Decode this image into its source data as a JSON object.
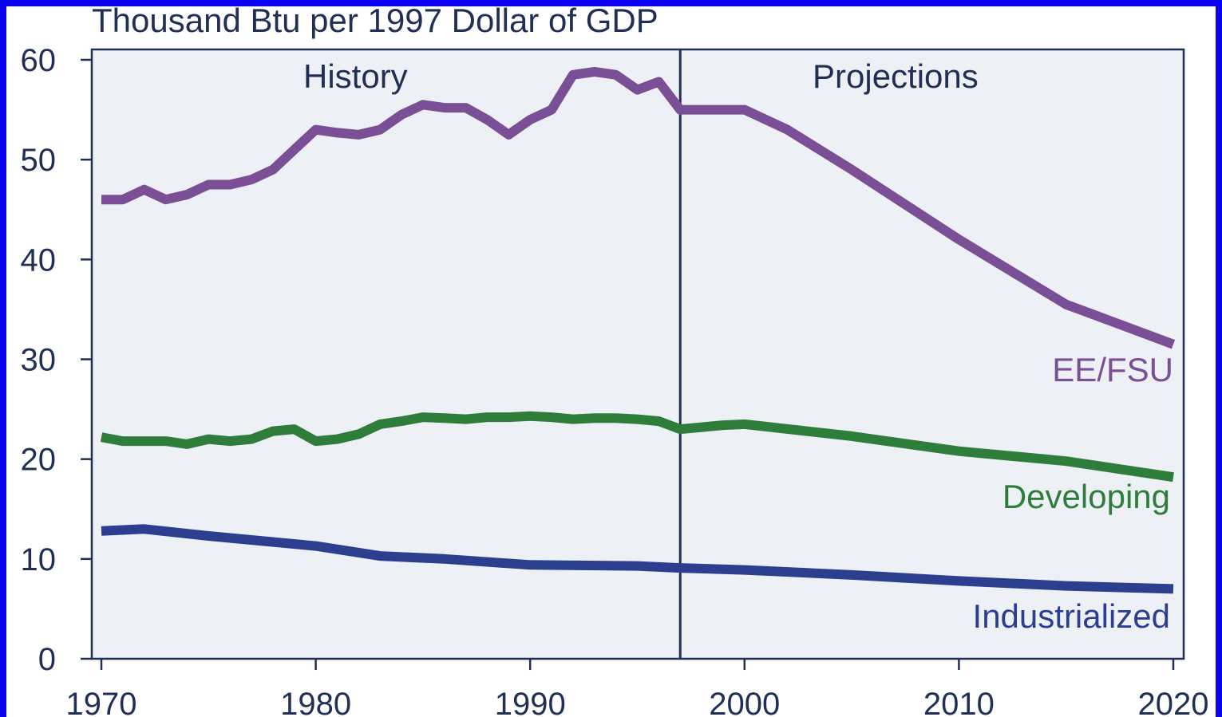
{
  "chart_data": {
    "type": "line",
    "title": "Thousand Btu per 1997 Dollar of GDP",
    "xlabel": "",
    "ylabel": "",
    "xlim": [
      1970,
      2020
    ],
    "ylim": [
      0,
      60
    ],
    "x_ticks": [
      1970,
      1980,
      1990,
      2000,
      2010,
      2020
    ],
    "y_ticks": [
      0,
      10,
      20,
      30,
      40,
      50,
      60
    ],
    "grid": false,
    "divider_x": 1997,
    "region_labels": {
      "left": "History",
      "right": "Projections"
    },
    "series": [
      {
        "name": "EE/FSU",
        "color": "#7b4f95",
        "x": [
          1970,
          1971,
          1972,
          1973,
          1974,
          1975,
          1976,
          1977,
          1978,
          1979,
          1980,
          1981,
          1982,
          1983,
          1984,
          1985,
          1986,
          1987,
          1988,
          1989,
          1990,
          1991,
          1992,
          1993,
          1994,
          1995,
          1996,
          1997,
          1998,
          1999,
          2000,
          2002,
          2005,
          2010,
          2015,
          2020
        ],
        "values": [
          46,
          46,
          47,
          46,
          46.5,
          47.5,
          47.5,
          48,
          49,
          51,
          53,
          52.7,
          52.5,
          53,
          54.5,
          55.5,
          55.2,
          55.2,
          54,
          52.5,
          54,
          55,
          58.5,
          58.8,
          58.5,
          57,
          57.8,
          55,
          55,
          55,
          55,
          53,
          49,
          42,
          35.5,
          31.5
        ]
      },
      {
        "name": "Developing",
        "color": "#2e7d3a",
        "x": [
          1970,
          1971,
          1972,
          1973,
          1974,
          1975,
          1976,
          1977,
          1978,
          1979,
          1980,
          1981,
          1982,
          1983,
          1984,
          1985,
          1986,
          1987,
          1988,
          1989,
          1990,
          1991,
          1992,
          1993,
          1994,
          1995,
          1996,
          1997,
          1998,
          1999,
          2000,
          2005,
          2010,
          2015,
          2020
        ],
        "values": [
          22.2,
          21.8,
          21.8,
          21.8,
          21.5,
          22,
          21.8,
          22,
          22.8,
          23,
          21.8,
          22,
          22.5,
          23.5,
          23.8,
          24.2,
          24.1,
          24,
          24.2,
          24.2,
          24.3,
          24.2,
          24,
          24.1,
          24.1,
          24,
          23.8,
          23,
          23.2,
          23.4,
          23.5,
          22.3,
          20.8,
          19.8,
          18.2
        ]
      },
      {
        "name": "Industrialized",
        "color": "#2c3f8f",
        "x": [
          1970,
          1972,
          1975,
          1980,
          1983,
          1986,
          1990,
          1995,
          1997,
          2000,
          2005,
          2010,
          2015,
          2020
        ],
        "values": [
          12.8,
          13,
          12.3,
          11.3,
          10.3,
          10,
          9.4,
          9.3,
          9.1,
          8.9,
          8.4,
          7.8,
          7.3,
          7
        ]
      }
    ]
  }
}
